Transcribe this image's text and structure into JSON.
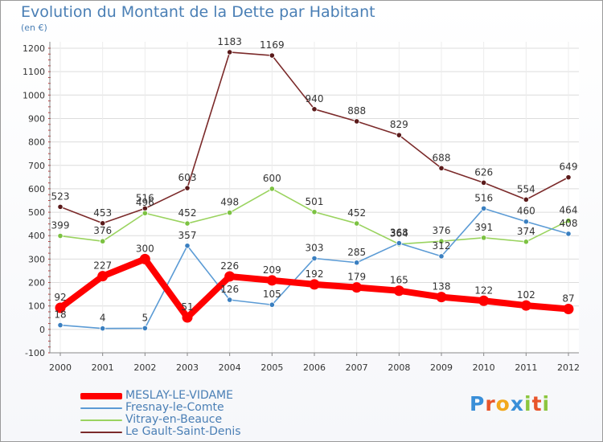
{
  "title": "Evolution du Montant de la Dette par Habitant",
  "subtitle": "(en €)",
  "logo": {
    "text": "Proxiti",
    "letters": [
      "P",
      "r",
      "o",
      "x",
      "i",
      "t",
      "i"
    ],
    "colors": [
      "#3a8fd8",
      "#e8542a",
      "#f2a81c",
      "#3a8fd8",
      "#8cc63f",
      "#e8542a",
      "#8cc63f"
    ]
  },
  "legend": [
    {
      "name": "MESLAY-LE-VIDAME",
      "color": "#ff0000",
      "width": 8
    },
    {
      "name": "Fresnay-le-Comte",
      "color": "#5b9bd5",
      "width": 2
    },
    {
      "name": "Vitray-en-Beauce",
      "color": "#9ad35f",
      "width": 2
    },
    {
      "name": "Le Gault-Saint-Denis",
      "color": "#7b2a2a",
      "width": 2
    }
  ],
  "chart_data": {
    "type": "line",
    "title": "Evolution du Montant de la Dette par Habitant",
    "ylabel": "(en €)",
    "xlabel": "",
    "x": [
      "2000",
      "2001",
      "2002",
      "2003",
      "2004",
      "2005",
      "2006",
      "2007",
      "2008",
      "2009",
      "2010",
      "2011",
      "2012"
    ],
    "ylim": [
      -100,
      1200
    ],
    "yticks": [
      "-100",
      "0",
      "100",
      "200",
      "300",
      "400",
      "500",
      "600",
      "700",
      "800",
      "900",
      "1000",
      "1100",
      "1200"
    ],
    "grid": true,
    "legend_position": "bottom-left",
    "series": [
      {
        "name": "Le Gault-Saint-Denis",
        "color": "#7b2a2a",
        "marker": "#5a1a1a",
        "values": [
          523,
          453,
          516,
          603,
          1183,
          1169,
          940,
          888,
          829,
          688,
          626,
          554,
          649
        ],
        "labels": [
          "523",
          "453",
          "516",
          "603",
          "1183",
          "1169",
          "940",
          "888",
          "829",
          "688",
          "626",
          "554",
          "649"
        ]
      },
      {
        "name": "Vitray-en-Beauce",
        "color": "#9ad35f",
        "marker": "#7cc242",
        "values": [
          399,
          376,
          496,
          452,
          498,
          600,
          501,
          452,
          364,
          376,
          391,
          374,
          464
        ],
        "labels": [
          "399",
          "376",
          "496",
          "452",
          "498",
          "600",
          "501",
          "452",
          "364",
          "376",
          "391",
          "374",
          "464"
        ]
      },
      {
        "name": "Fresnay-le-Comte",
        "color": "#5b9bd5",
        "marker": "#3a7fc0",
        "values": [
          18,
          4,
          5,
          357,
          126,
          105,
          303,
          285,
          368,
          312,
          516,
          460,
          408
        ],
        "labels": [
          "18",
          "4",
          "5",
          "357",
          "126",
          "105",
          "303",
          "285",
          "368",
          "312",
          "516",
          "460",
          "408"
        ]
      },
      {
        "name": "MESLAY-LE-VIDAME",
        "color": "#ff0000",
        "marker": "#ff0000",
        "values": [
          92,
          227,
          300,
          51,
          226,
          209,
          192,
          179,
          165,
          138,
          122,
          102,
          87
        ],
        "labels": [
          "92",
          "227",
          "300",
          "51",
          "226",
          "209",
          "192",
          "179",
          "165",
          "138",
          "122",
          "102",
          "87"
        ]
      }
    ]
  }
}
